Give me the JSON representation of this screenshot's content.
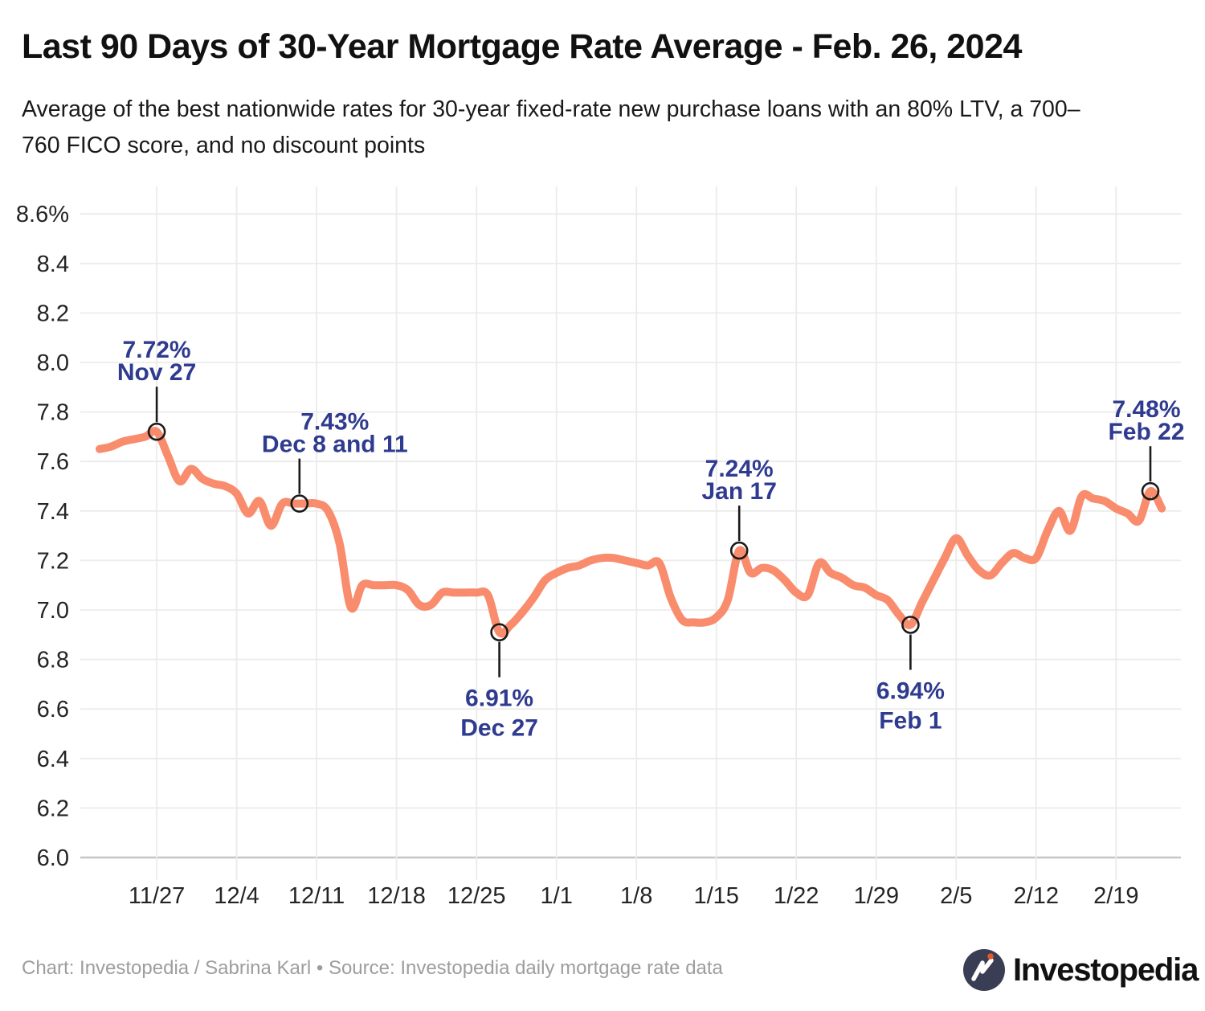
{
  "header": {
    "title": "Last 90 Days of 30-Year Mortgage Rate Average - Feb. 26, 2024",
    "subtitle_lines": [
      "Average of the best nationwide rates for 30-year fixed-rate new purchase loans with an 80% LTV, a 700–",
      "760 FICO score, and no discount points"
    ]
  },
  "footer": {
    "credit": "Chart: Investopedia / Sabrina Karl • Source: Investopedia daily mortgage rate data",
    "logo_text": "Investopedia"
  },
  "colors": {
    "line": "#F88C6D",
    "annotation_text": "#2F3B8F",
    "grid": "#EBEBEB",
    "axis_line": "#C6C6C6",
    "axis_text": "#242424",
    "marker_stroke": "#1A1A1A",
    "logo_circle": "#3A3E54",
    "logo_dot": "#E2572D"
  },
  "chart_data": {
    "type": "line",
    "title": "Last 90 Days of 30-Year Mortgage Rate Average - Feb. 26, 2024",
    "xlabel": "",
    "ylabel": "",
    "ylim": [
      6.0,
      8.6
    ],
    "ytick_step": 0.2,
    "grid": true,
    "legend": "none",
    "x": [
      "11/22",
      "11/23",
      "11/24",
      "11/25",
      "11/26",
      "11/27",
      "11/28",
      "11/29",
      "11/30",
      "12/1",
      "12/2",
      "12/3",
      "12/4",
      "12/5",
      "12/6",
      "12/7",
      "12/8",
      "12/9",
      "12/10",
      "12/11",
      "12/12",
      "12/13",
      "12/14",
      "12/15",
      "12/16",
      "12/17",
      "12/18",
      "12/19",
      "12/20",
      "12/21",
      "12/22",
      "12/23",
      "12/24",
      "12/25",
      "12/26",
      "12/27",
      "12/28",
      "12/29",
      "12/30",
      "12/31",
      "1/1",
      "1/2",
      "1/3",
      "1/4",
      "1/5",
      "1/6",
      "1/7",
      "1/8",
      "1/9",
      "1/10",
      "1/11",
      "1/12",
      "1/13",
      "1/14",
      "1/15",
      "1/16",
      "1/17",
      "1/18",
      "1/19",
      "1/20",
      "1/21",
      "1/22",
      "1/23",
      "1/24",
      "1/25",
      "1/26",
      "1/27",
      "1/28",
      "1/29",
      "1/30",
      "1/31",
      "2/1",
      "2/2",
      "2/3",
      "2/4",
      "2/5",
      "2/6",
      "2/7",
      "2/8",
      "2/9",
      "2/10",
      "2/11",
      "2/12",
      "2/13",
      "2/14",
      "2/15",
      "2/16",
      "2/17",
      "2/18",
      "2/19",
      "2/20",
      "2/21",
      "2/22",
      "2/23"
    ],
    "values": [
      7.65,
      7.66,
      7.68,
      7.69,
      7.7,
      7.72,
      7.62,
      7.52,
      7.57,
      7.53,
      7.51,
      7.5,
      7.47,
      7.39,
      7.44,
      7.34,
      7.43,
      7.43,
      7.43,
      7.43,
      7.4,
      7.27,
      7.01,
      7.1,
      7.1,
      7.1,
      7.1,
      7.08,
      7.02,
      7.02,
      7.07,
      7.07,
      7.07,
      7.07,
      7.06,
      6.91,
      6.94,
      6.99,
      7.05,
      7.12,
      7.15,
      7.17,
      7.18,
      7.2,
      7.21,
      7.21,
      7.2,
      7.19,
      7.18,
      7.19,
      7.05,
      6.96,
      6.95,
      6.95,
      6.97,
      7.04,
      7.24,
      7.15,
      7.17,
      7.16,
      7.12,
      7.07,
      7.06,
      7.19,
      7.15,
      7.13,
      7.1,
      7.09,
      7.06,
      7.04,
      6.98,
      6.94,
      7.03,
      7.12,
      7.21,
      7.29,
      7.22,
      7.16,
      7.14,
      7.19,
      7.23,
      7.21,
      7.21,
      7.32,
      7.4,
      7.32,
      7.46,
      7.45,
      7.44,
      7.41,
      7.39,
      7.36,
      7.48,
      7.41
    ],
    "ytick_labels": [
      "8.6%",
      "8.4",
      "8.2",
      "8.0",
      "7.8",
      "7.6",
      "7.4",
      "7.2",
      "7.0",
      "6.8",
      "6.6",
      "6.4",
      "6.2",
      "6.0"
    ],
    "xtick_labels": [
      "11/27",
      "12/4",
      "12/11",
      "12/18",
      "12/25",
      "1/1",
      "1/8",
      "1/15",
      "1/22",
      "1/29",
      "2/5",
      "2/12",
      "2/19"
    ],
    "xtick_indices": [
      5,
      12,
      19,
      26,
      33,
      40,
      47,
      54,
      61,
      68,
      75,
      82,
      89
    ],
    "annotations": [
      {
        "value_label": "7.72%",
        "date_label": "Nov 27",
        "anchor_index": 5,
        "value": 7.72,
        "side": "above",
        "label_dx": 0
      },
      {
        "value_label": "7.43%",
        "date_label": "Dec 8 and 11",
        "anchor_index": 17.5,
        "value": 7.43,
        "side": "above",
        "label_dx": 44
      },
      {
        "value_label": "6.91%",
        "date_label": "Dec 27",
        "anchor_index": 35,
        "value": 6.91,
        "side": "below",
        "label_dx": 0
      },
      {
        "value_label": "7.24%",
        "date_label": "Jan 17",
        "anchor_index": 56,
        "value": 7.24,
        "side": "above",
        "label_dx": 0
      },
      {
        "value_label": "6.94%",
        "date_label": "Feb 1",
        "anchor_index": 71,
        "value": 6.94,
        "side": "below",
        "label_dx": 0
      },
      {
        "value_label": "7.48%",
        "date_label": "Feb 22",
        "anchor_index": 92,
        "value": 7.48,
        "side": "above",
        "label_dx": -5
      }
    ]
  }
}
